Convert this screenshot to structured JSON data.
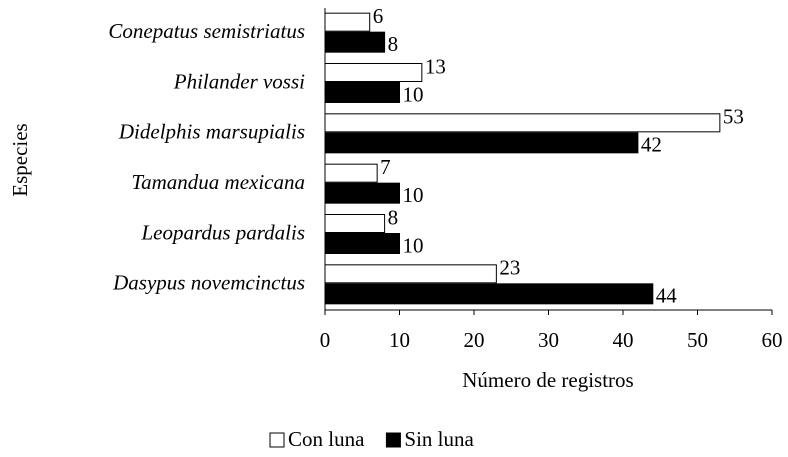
{
  "chart_data": {
    "type": "bar",
    "y_label": "Especies",
    "x_label": "Número de registros",
    "categories": [
      "Conepatus semistriatus",
      "Philander vossi",
      "Didelphis marsupialis",
      "Tamandua mexicana",
      "Leopardus pardalis",
      "Dasypus novemcinctus"
    ],
    "series": [
      {
        "name": "Con luna",
        "color": "#ffffff",
        "values": [
          6,
          13,
          53,
          7,
          8,
          23
        ]
      },
      {
        "name": "Sin luna",
        "color": "#000000",
        "values": [
          8,
          10,
          42,
          10,
          10,
          44
        ]
      }
    ],
    "xlim": [
      0,
      60
    ],
    "xticks": [
      0,
      10,
      20,
      30,
      40,
      50,
      60
    ]
  }
}
